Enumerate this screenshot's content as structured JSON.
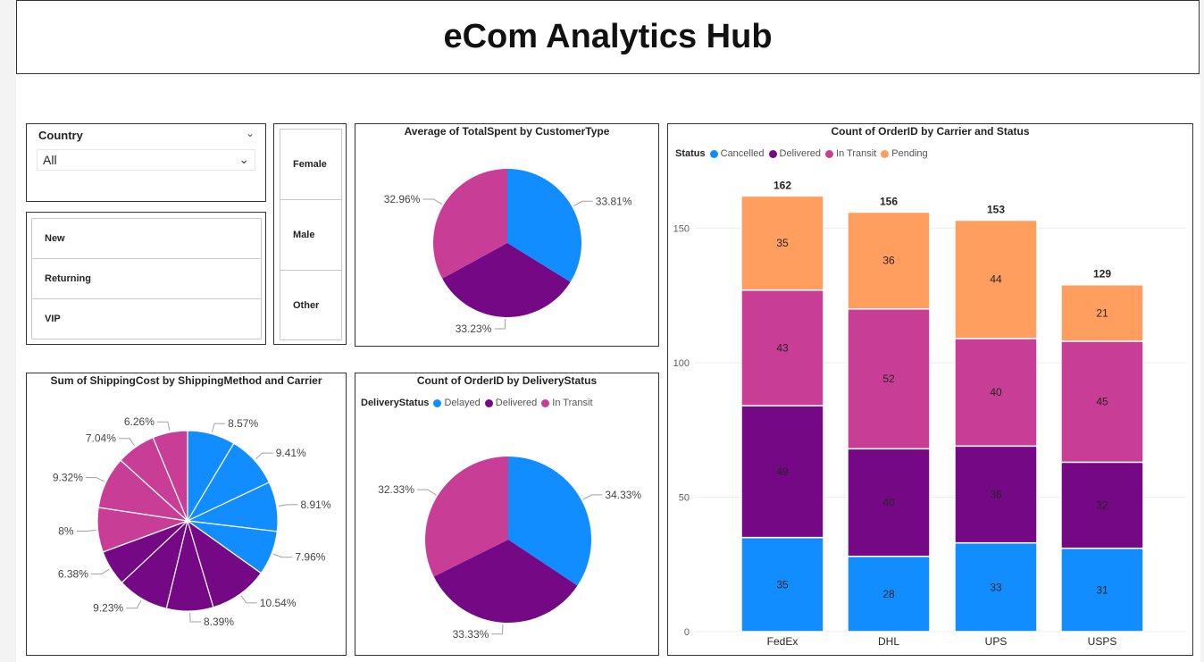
{
  "header": {
    "title": "eCom Analytics Hub"
  },
  "colors": {
    "blue": "#118dff",
    "purple": "#750985",
    "magenta": "#c83d95",
    "orange": "#ff9e5f"
  },
  "country_slicer": {
    "title": "Country",
    "selected": "All"
  },
  "customer_type_slicer": {
    "items": [
      "New",
      "Returning",
      "VIP"
    ]
  },
  "gender_slicer": {
    "items": [
      "Female",
      "Male",
      "Other"
    ]
  },
  "chart_data": [
    {
      "type": "pie",
      "title": "Average of TotalSpent by CustomerType",
      "slices": [
        {
          "value": 33.81,
          "label": "33.81%",
          "color": "#118dff"
        },
        {
          "value": 33.23,
          "label": "33.23%",
          "color": "#750985"
        },
        {
          "value": 32.96,
          "label": "32.96%",
          "color": "#c83d95"
        }
      ]
    },
    {
      "type": "pie",
      "title": "Sum of ShippingCost by ShippingMethod and Carrier",
      "slices": [
        {
          "value": 8.57,
          "label": "8.57%",
          "color": "#118dff"
        },
        {
          "value": 9.41,
          "label": "9.41%",
          "color": "#118dff"
        },
        {
          "value": 8.91,
          "label": "8.91%",
          "color": "#118dff"
        },
        {
          "value": 7.96,
          "label": "7.96%",
          "color": "#118dff"
        },
        {
          "value": 10.54,
          "label": "10.54%",
          "color": "#750985"
        },
        {
          "value": 8.39,
          "label": "8.39%",
          "color": "#750985"
        },
        {
          "value": 9.23,
          "label": "9.23%",
          "color": "#750985"
        },
        {
          "value": 6.38,
          "label": "6.38%",
          "color": "#750985"
        },
        {
          "value": 8,
          "label": "8%",
          "color": "#c83d95"
        },
        {
          "value": 9.32,
          "label": "9.32%",
          "color": "#c83d95"
        },
        {
          "value": 7.04,
          "label": "7.04%",
          "color": "#c83d95"
        },
        {
          "value": 6.26,
          "label": "6.26%",
          "color": "#c83d95"
        }
      ]
    },
    {
      "type": "pie",
      "title": "Count of OrderID by DeliveryStatus",
      "legend_title": "DeliveryStatus",
      "legend": [
        {
          "name": "Delayed",
          "color": "#118dff"
        },
        {
          "name": "Delivered",
          "color": "#750985"
        },
        {
          "name": "In Transit",
          "color": "#c83d95"
        }
      ],
      "slices": [
        {
          "value": 34.33,
          "label": "34.33%",
          "color": "#118dff"
        },
        {
          "value": 33.33,
          "label": "33.33%",
          "color": "#750985"
        },
        {
          "value": 32.33,
          "label": "32.33%",
          "color": "#c83d95"
        }
      ]
    },
    {
      "type": "bar",
      "stacked": true,
      "title": "Count of OrderID by Carrier and Status",
      "legend_title": "Status",
      "categories": [
        "FedEx",
        "DHL",
        "UPS",
        "USPS"
      ],
      "series": [
        {
          "name": "Cancelled",
          "color": "#118dff",
          "values": [
            35,
            28,
            33,
            31
          ]
        },
        {
          "name": "Delivered",
          "color": "#750985",
          "values": [
            49,
            40,
            36,
            32
          ]
        },
        {
          "name": "In Transit",
          "color": "#c83d95",
          "values": [
            43,
            52,
            40,
            45
          ]
        },
        {
          "name": "Pending",
          "color": "#ff9e5f",
          "values": [
            35,
            36,
            44,
            21
          ]
        }
      ],
      "totals": [
        162,
        156,
        153,
        129
      ],
      "yticks": [
        0,
        50,
        100,
        150
      ],
      "ylim": [
        0,
        165
      ],
      "grid": true
    }
  ]
}
